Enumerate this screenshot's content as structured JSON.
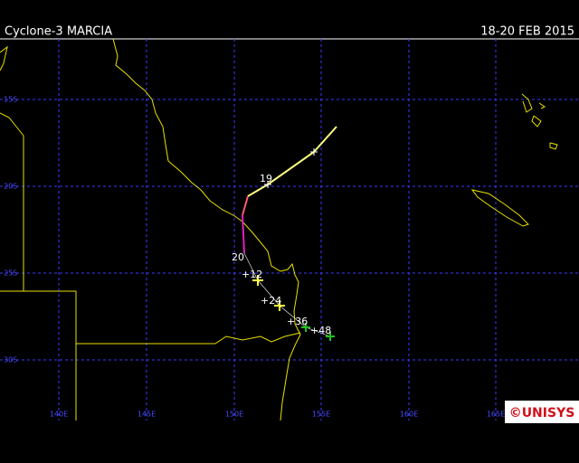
{
  "header": {
    "title": "Cyclone-3 MARCIA",
    "date": "18-20 FEB 2015"
  },
  "map": {
    "latitude_labels": [
      "15S",
      "20S",
      "25S",
      "30S"
    ],
    "longitude_labels": [
      "140E",
      "145E",
      "150E",
      "155E",
      "160E",
      "165E"
    ],
    "track_labels": [
      "19",
      "20",
      "+12",
      "+24",
      "+36",
      "+48"
    ],
    "logo": "©UNISYS"
  }
}
